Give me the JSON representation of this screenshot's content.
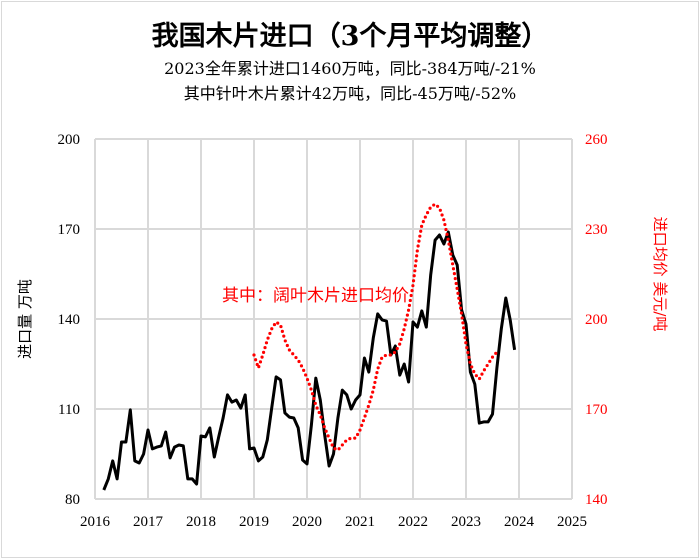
{
  "chart_data": {
    "type": "line",
    "title": "我国木片进口（3个月平均调整）",
    "subtitle_lines": [
      "2023全年累计进口1460万吨，同比-384万吨/-21%",
      "其中针叶木片累计42万吨，同比-45万吨/-52%"
    ],
    "annotation": "其中：阔叶木片进口均价",
    "ylabel": "进口量 万吨",
    "y2label": "进口均价 美元/吨",
    "xlim": [
      2016,
      2025
    ],
    "ylim": [
      80,
      200
    ],
    "y2lim": [
      140,
      260
    ],
    "x_ticks": [
      "2016",
      "2017",
      "2018",
      "2019",
      "2020",
      "2021",
      "2022",
      "2023",
      "2024",
      "2025"
    ],
    "y_ticks": [
      "80",
      "110",
      "140",
      "170",
      "200"
    ],
    "y2_ticks": [
      "140",
      "170",
      "200",
      "230",
      "260"
    ],
    "grid": true,
    "frequency": "monthly",
    "series": [
      {
        "axis": "left",
        "color": "#000000",
        "style": "solid",
        "x_start": "2016-03",
        "values": [
          83,
          86.7,
          92.7,
          86.7,
          99,
          99,
          109.7,
          92.7,
          92,
          95,
          103,
          96.7,
          97.3,
          97.7,
          102.3,
          93.7,
          97.3,
          98,
          97.7,
          86.7,
          86.7,
          85,
          101,
          100.7,
          103.7,
          94,
          100.7,
          107,
          114.7,
          112.3,
          113,
          110.3,
          114.7,
          96.7,
          97,
          92.7,
          94,
          99.7,
          110.3,
          120.7,
          119.7,
          108.7,
          107.3,
          107,
          103.7,
          93,
          91.7,
          104.7,
          120.3,
          113,
          101.3,
          91,
          95,
          107,
          116.3,
          114.7,
          110,
          113,
          114.7,
          127,
          122.3,
          133.7,
          141.7,
          139.7,
          139.3,
          128,
          131,
          121.3,
          125,
          119,
          139,
          137.3,
          142.7,
          137.3,
          154.7,
          166.3,
          168,
          165,
          169,
          161.3,
          158,
          143,
          138.3,
          122.3,
          118.3,
          105.3,
          105.7,
          105.7,
          108.3,
          123.7,
          136.7,
          147,
          139.7,
          129.7
        ]
      },
      {
        "axis": "right",
        "color": "#ff0000",
        "style": "dotted",
        "x_start": "2019-01",
        "values": [
          188,
          183.7,
          188,
          193,
          196.7,
          199,
          198,
          193,
          189.7,
          188,
          186.3,
          183.7,
          180.3,
          176.3,
          171.3,
          168,
          163.7,
          160.3,
          157,
          156.3,
          158,
          159.7,
          160.3,
          160.3,
          163,
          167,
          171.3,
          176.3,
          183.3,
          187.3,
          188,
          188,
          189,
          191.7,
          196.7,
          203,
          211.3,
          223,
          231.3,
          234.7,
          237.3,
          238.3,
          237,
          233,
          226.3,
          218,
          210,
          201.7,
          191.7,
          185,
          181.7,
          180,
          182.7,
          185,
          187.3,
          189
        ]
      }
    ]
  }
}
